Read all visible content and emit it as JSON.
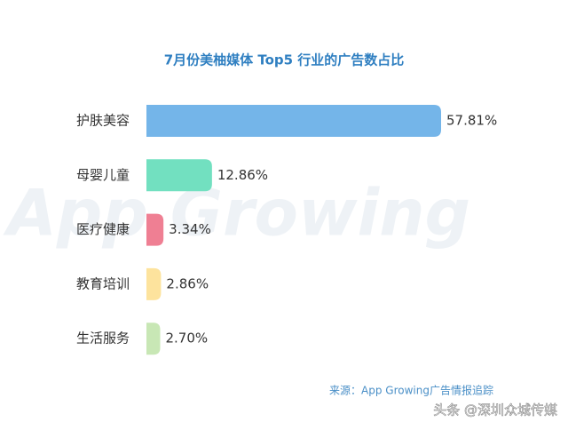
{
  "chart_data": {
    "type": "bar",
    "orientation": "horizontal",
    "title": "7月份美柚媒体 Top5 行业的广告数占比",
    "categories": [
      "护肤美容",
      "母婴儿童",
      "医疗健康",
      "教育培训",
      "生活服务"
    ],
    "values": [
      57.81,
      12.86,
      3.34,
      2.86,
      2.7
    ],
    "value_labels": [
      "57.81%",
      "12.86%",
      "3.34%",
      "2.86%",
      "2.70%"
    ],
    "colors": [
      "#74b5e9",
      "#72e0c0",
      "#ef7f93",
      "#fde39d",
      "#c8e7b5"
    ],
    "source": "来源：App Growing广告情报追踪",
    "watermark": "App Growing",
    "footer_watermark": "头条 @深圳众城传媒"
  }
}
